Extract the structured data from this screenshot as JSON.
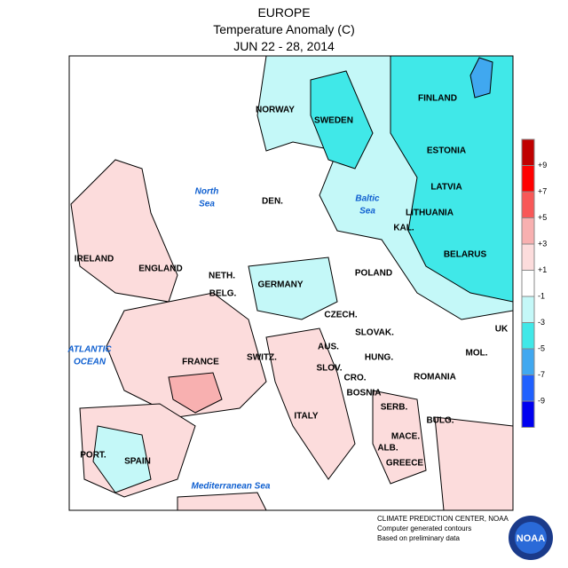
{
  "header": {
    "title": "EUROPE",
    "subtitle": "Temperature Anomaly (C)",
    "dates": "JUN 22 - 28, 2014"
  },
  "labels": {
    "countries": [
      "NORWAY",
      "SWEDEN",
      "FINLAND",
      "ESTONIA",
      "LATVIA",
      "LITHUANIA",
      "DEN.",
      "KAL.",
      "BELARUS",
      "IRELAND",
      "ENGLAND",
      "NETH.",
      "POLAND",
      "GERMANY",
      "BELG.",
      "CZECH.",
      "UK",
      "SLOVAK.",
      "FRANCE",
      "SWITZ.",
      "AUS.",
      "MOL.",
      "HUNG.",
      "SLOV.",
      "CRO.",
      "ROMANIA",
      "BOSNIA",
      "SERB.",
      "BULG.",
      "ITALY",
      "MACE.",
      "ALB.",
      "PORT.",
      "SPAIN",
      "GREECE"
    ],
    "seas": {
      "north_sea": [
        "North",
        "Sea"
      ],
      "baltic_sea": [
        "Baltic",
        "Sea"
      ],
      "atlantic": [
        "ATLANTIC",
        "OCEAN"
      ],
      "mediterranean": "Mediterranean Sea"
    }
  },
  "legend": {
    "colors": [
      "#c00000",
      "#ff0000",
      "#f85858",
      "#f8b0b0",
      "#fcdcdc",
      "#ffffff",
      "#c4f8f8",
      "#40e8e8",
      "#40a8f0",
      "#2060ff",
      "#0000f0"
    ],
    "labels": [
      "+9",
      "+7",
      "+5",
      "+3",
      "+1",
      "-1",
      "-3",
      "-5",
      "-7",
      "-9"
    ]
  },
  "footer": {
    "lines": [
      "CLIMATE PREDICTION CENTER, NOAA",
      "Computer generated contours",
      "Based on preliminary data"
    ],
    "logo": "NOAA"
  }
}
